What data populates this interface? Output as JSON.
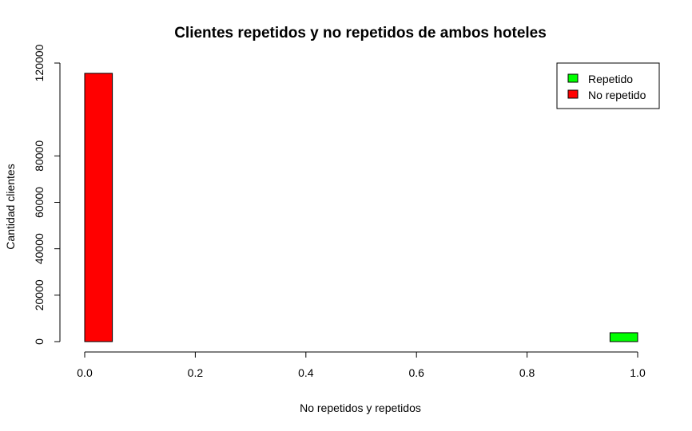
{
  "chart_data": {
    "type": "bar",
    "title": "Clientes repetidos y no repetidos de ambos hoteles",
    "xlabel": "No repetidos y repetidos",
    "ylabel": "Cantidad clientes",
    "xlim": [
      0,
      1
    ],
    "ylim": [
      0,
      120000
    ],
    "x_ticks": [
      "0.0",
      "0.2",
      "0.4",
      "0.6",
      "0.8",
      "1.0"
    ],
    "y_ticks": [
      "0",
      "20000",
      "40000",
      "60000",
      "80000",
      "120000"
    ],
    "y_tick_values": [
      0,
      20000,
      40000,
      60000,
      80000,
      120000
    ],
    "x_tick_values": [
      0,
      0.2,
      0.4,
      0.6,
      0.8,
      1.0
    ],
    "bins": [
      {
        "x0": 0.0,
        "x1": 0.05,
        "value": 115580,
        "series": "No repetido",
        "color": "#ff0000"
      },
      {
        "x0": 0.95,
        "x1": 1.0,
        "value": 3810,
        "series": "Repetido",
        "color": "#00ff00"
      }
    ],
    "legend": {
      "position": "top-right",
      "entries": [
        {
          "name": "Repetido",
          "color": "#00ff00"
        },
        {
          "name": "No repetido",
          "color": "#ff0000"
        }
      ]
    },
    "grid": false
  }
}
